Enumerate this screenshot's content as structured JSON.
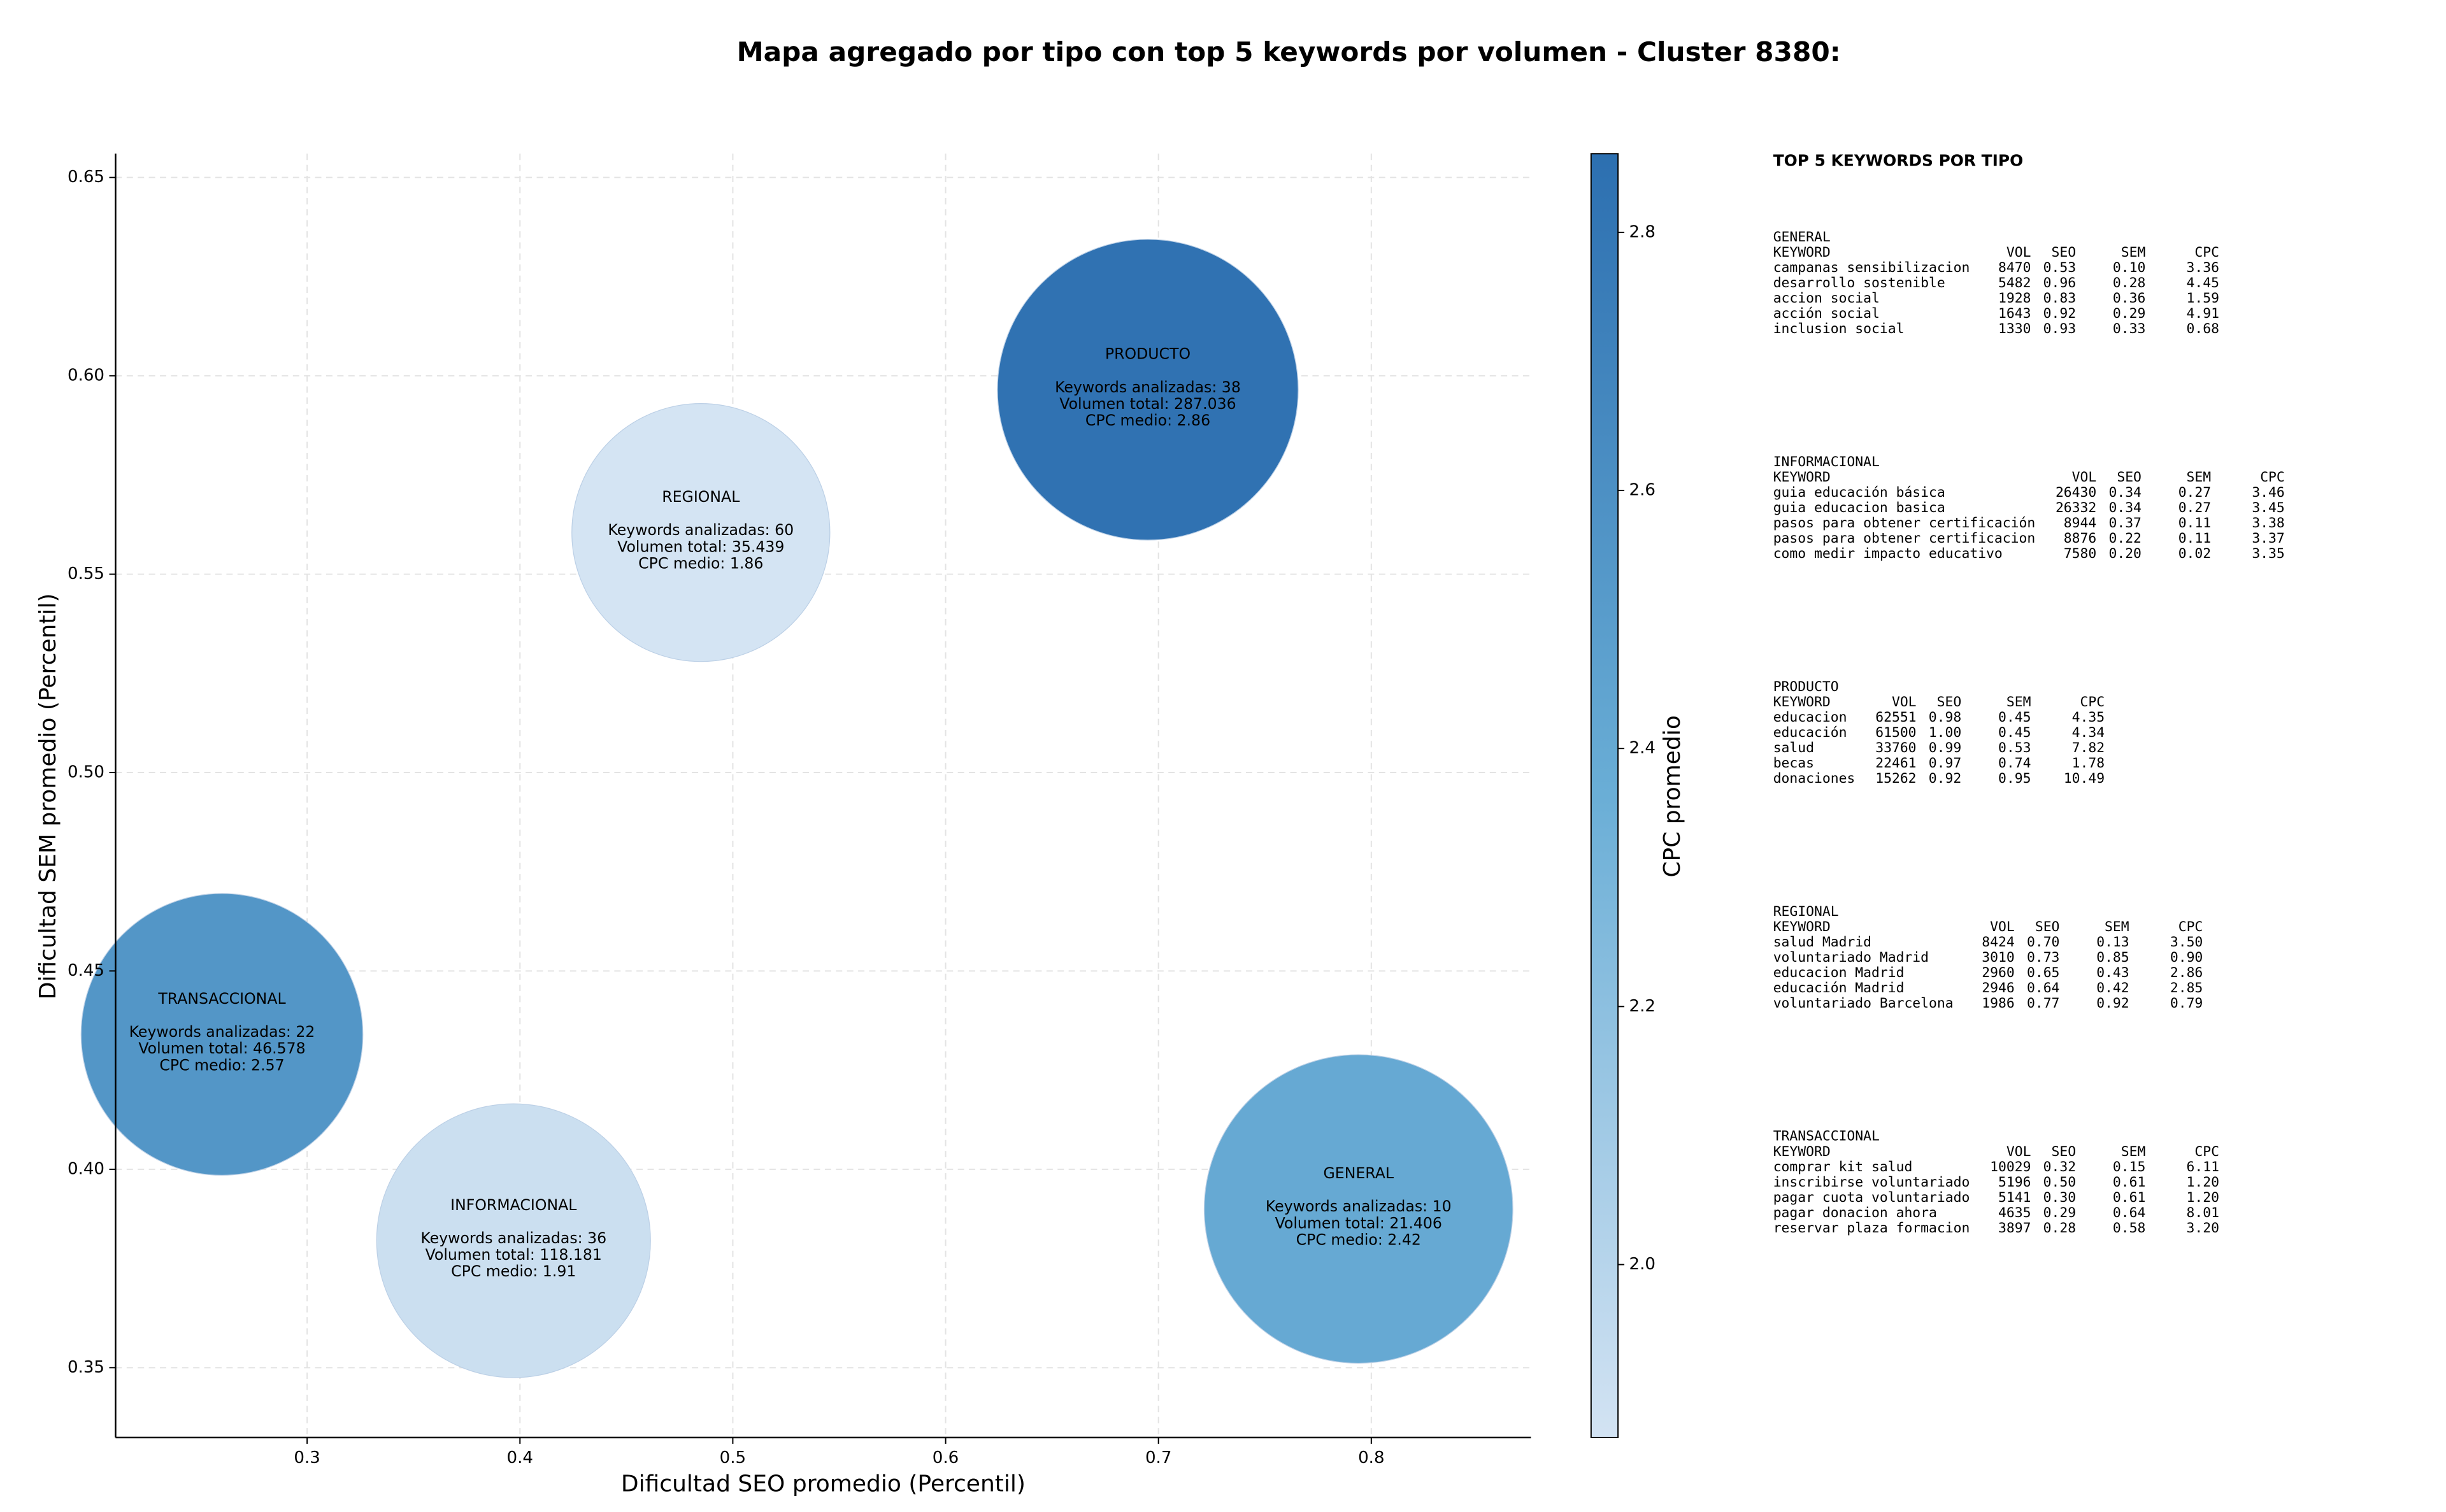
{
  "chart_data": {
    "type": "bubble",
    "title": "Mapa agregado por tipo con top 5 keywords por volumen - Cluster 8380:",
    "xlabel": "Dificultad SEO promedio (Percentil)",
    "ylabel": "Dificultad SEM promedio (Percentil)",
    "xlim": [
      0.21,
      0.875
    ],
    "ylim": [
      0.3324,
      0.656
    ],
    "xticks": [
      0.3,
      0.4,
      0.5,
      0.6,
      0.7,
      0.8
    ],
    "yticks": [
      0.35,
      {
        "value": 0.4,
        "label": "0.40"
      },
      0.45,
      {
        "value": 0.5,
        "label": "0.50"
      },
      0.55,
      {
        "value": 0.6,
        "label": "0.60"
      },
      0.65
    ],
    "grid": true,
    "colorbar": {
      "label": "CPC promedio",
      "lim": [
        1.866,
        2.861
      ],
      "ticks": [
        {
          "value": 2,
          "label": "2.0"
        },
        2.2,
        2.4,
        2.6,
        2.8
      ],
      "cmap": [
        "#d3e3f3",
        "#6aaed6",
        "#2c6fb0"
      ]
    },
    "points": [
      {
        "name": "PRODUCTO",
        "x": 0.695,
        "y": 0.5965,
        "size": 9025,
        "cpc": 2.86,
        "lines": [
          "Keywords analizadas: 38",
          "Volumen total: 287.036",
          "CPC medio: 2.86"
        ]
      },
      {
        "name": "REGIONAL",
        "x": 0.485,
        "y": 0.5605,
        "size": 6640,
        "cpc": 1.86,
        "lines": [
          "Keywords analizadas: 60",
          "Volumen total: 35.439",
          "CPC medio: 1.86"
        ]
      },
      {
        "name": "TRANSACCIONAL",
        "x": 0.26,
        "y": 0.434,
        "size": 7920,
        "cpc": 2.57,
        "lines": [
          "Keywords analizadas: 22",
          "Volumen total: 46.578",
          "CPC medio: 2.57"
        ]
      },
      {
        "name": "INFORMACIONAL",
        "x": 0.397,
        "y": 0.382,
        "size": 7480,
        "cpc": 1.91,
        "lines": [
          "Keywords analizadas: 36",
          "Volumen total: 118.181",
          "CPC medio: 1.91"
        ]
      },
      {
        "name": "GENERAL",
        "x": 0.794,
        "y": 0.39,
        "size": 9500,
        "cpc": 2.42,
        "lines": [
          "Keywords analizadas: 10",
          "Volumen total: 21.406",
          "CPC medio: 2.42"
        ]
      }
    ]
  },
  "side_panel": {
    "title": "TOP 5 KEYWORDS POR TIPO",
    "tables": [
      {
        "title": "GENERAL",
        "columns": [
          "KEYWORD",
          "VOL",
          "SEO",
          "SEM",
          "CPC"
        ],
        "rows": [
          [
            "campanas sensibilizacion",
            "8470",
            "0.53",
            "0.10",
            "3.36"
          ],
          [
            "desarrollo sostenible",
            "5482",
            "0.96",
            "0.28",
            "4.45"
          ],
          [
            "accion social",
            "1928",
            "0.83",
            "0.36",
            "1.59"
          ],
          [
            "acción social",
            "1643",
            "0.92",
            "0.29",
            "4.91"
          ],
          [
            "inclusion social",
            "1330",
            "0.93",
            "0.33",
            "0.68"
          ]
        ]
      },
      {
        "title": "INFORMACIONAL",
        "columns": [
          "KEYWORD",
          "VOL",
          "SEO",
          "SEM",
          "CPC"
        ],
        "rows": [
          [
            "guia educación básica",
            "26430",
            "0.34",
            "0.27",
            "3.46"
          ],
          [
            "guia educacion basica",
            "26332",
            "0.34",
            "0.27",
            "3.45"
          ],
          [
            "pasos para obtener certificación",
            "8944",
            "0.37",
            "0.11",
            "3.38"
          ],
          [
            "pasos para obtener certificacion",
            "8876",
            "0.22",
            "0.11",
            "3.37"
          ],
          [
            "como medir impacto educativo",
            "7580",
            "0.20",
            "0.02",
            "3.35"
          ]
        ]
      },
      {
        "title": "PRODUCTO",
        "columns": [
          "KEYWORD",
          "VOL",
          "SEO",
          "SEM",
          "CPC"
        ],
        "rows": [
          [
            "educacion",
            "62551",
            "0.98",
            "0.45",
            "4.35"
          ],
          [
            "educación",
            "61500",
            "1.00",
            "0.45",
            "4.34"
          ],
          [
            "salud",
            "33760",
            "0.99",
            "0.53",
            "7.82"
          ],
          [
            "becas",
            "22461",
            "0.97",
            "0.74",
            "1.78"
          ],
          [
            "donaciones",
            "15262",
            "0.92",
            "0.95",
            "10.49"
          ]
        ]
      },
      {
        "title": "REGIONAL",
        "columns": [
          "KEYWORD",
          "VOL",
          "SEO",
          "SEM",
          "CPC"
        ],
        "rows": [
          [
            "salud Madrid",
            "8424",
            "0.70",
            "0.13",
            "3.50"
          ],
          [
            "voluntariado Madrid",
            "3010",
            "0.73",
            "0.85",
            "0.90"
          ],
          [
            "educacion Madrid",
            "2960",
            "0.65",
            "0.43",
            "2.86"
          ],
          [
            "educación Madrid",
            "2946",
            "0.64",
            "0.42",
            "2.85"
          ],
          [
            "voluntariado Barcelona",
            "1986",
            "0.77",
            "0.92",
            "0.79"
          ]
        ]
      },
      {
        "title": "TRANSACCIONAL",
        "columns": [
          "KEYWORD",
          "VOL",
          "SEO",
          "SEM",
          "CPC"
        ],
        "rows": [
          [
            "comprar kit salud",
            "10029",
            "0.32",
            "0.15",
            "6.11"
          ],
          [
            "inscribirse voluntariado",
            "5196",
            "0.50",
            "0.61",
            "1.20"
          ],
          [
            "pagar cuota voluntariado",
            "5141",
            "0.30",
            "0.61",
            "1.20"
          ],
          [
            "pagar donacion ahora",
            "4635",
            "0.29",
            "0.64",
            "8.01"
          ],
          [
            "reservar plaza formacion",
            "3897",
            "0.28",
            "0.58",
            "3.20"
          ]
        ]
      }
    ]
  }
}
